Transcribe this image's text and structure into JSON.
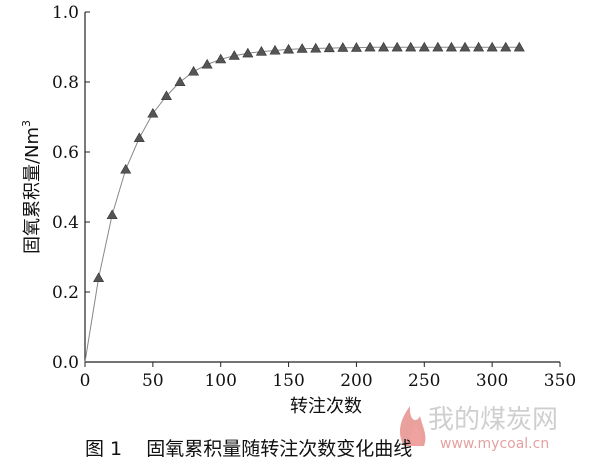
{
  "chart_data": {
    "type": "scatter",
    "xlabel": "转注次数",
    "ylabel": "固氧累积量/Nm",
    "ylabel_sup": "3",
    "xlim": [
      0,
      350
    ],
    "ylim": [
      0,
      1.0
    ],
    "xticks": [
      0,
      50,
      100,
      150,
      200,
      250,
      300,
      350
    ],
    "yticks": [
      0.0,
      0.2,
      0.4,
      0.6,
      0.8,
      1.0
    ],
    "xtick_labels": [
      "0",
      "50",
      "100",
      "150",
      "200",
      "250",
      "300",
      "350"
    ],
    "ytick_labels": [
      "0.0",
      "0.2",
      "0.4",
      "0.6",
      "0.8",
      "1.0"
    ],
    "grid": false,
    "series": [
      {
        "marker": "triangle",
        "color": "#555555",
        "line_color": "#888888",
        "x": [
          0,
          10,
          20,
          30,
          40,
          50,
          60,
          70,
          80,
          90,
          100,
          110,
          120,
          130,
          140,
          150,
          160,
          170,
          180,
          190,
          200,
          210,
          220,
          230,
          240,
          250,
          260,
          270,
          280,
          290,
          300,
          310,
          320
        ],
        "y": [
          0.0,
          0.24,
          0.42,
          0.55,
          0.64,
          0.71,
          0.76,
          0.8,
          0.83,
          0.85,
          0.865,
          0.875,
          0.882,
          0.887,
          0.89,
          0.893,
          0.895,
          0.896,
          0.897,
          0.898,
          0.898,
          0.899,
          0.899,
          0.899,
          0.899,
          0.899,
          0.899,
          0.899,
          0.899,
          0.899,
          0.899,
          0.899,
          0.899
        ]
      }
    ]
  },
  "caption": "图 1    固氧累积量随转注次数变化曲线",
  "watermark": {
    "text_cn": "我的煤炭网",
    "text_en": "www.mycoal.cn",
    "icon": "flame-logo-icon",
    "color_primary": "#d9534f"
  }
}
